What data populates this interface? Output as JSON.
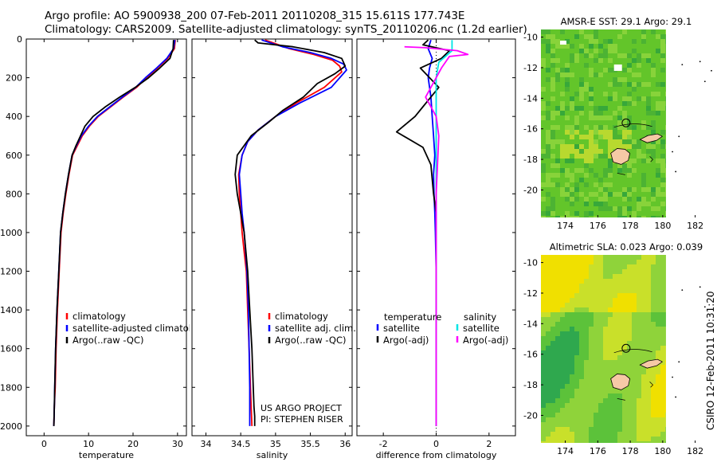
{
  "header": {
    "line1": "Argo profile: AO 5900938_200 07-Feb-2011 20110208_315 15.611S 177.743E",
    "line2": "Climatology: CARS2009. Satellite-adjusted climatology: synTS_20110206.nc (1.2d earlier)"
  },
  "colors": {
    "climatology": "#ff0000",
    "satellite": "#0000ff",
    "argo": "#000000",
    "sat_salinity": "#00e5e5",
    "argo_salinity": "#ff00ff",
    "land": "#f6c9a6"
  },
  "chart_data": [
    {
      "type": "line",
      "id": "temperature",
      "xlabel": "temperature",
      "xlim": [
        -4,
        32
      ],
      "ylim": [
        2050,
        0
      ],
      "xticks": [
        0,
        10,
        20,
        30
      ],
      "yticks": [
        0,
        200,
        400,
        600,
        800,
        1000,
        1200,
        1400,
        1600,
        1800,
        2000
      ],
      "legend": [
        "climatology",
        "satellite-adjusted climatology",
        "Argo(..raw -QC)"
      ],
      "series": [
        {
          "name": "climatology",
          "color": "#ff0000",
          "x": [
            29.5,
            29.3,
            27.8,
            25.5,
            23.0,
            20.8,
            17.8,
            15.0,
            12.2,
            10.2,
            8.6,
            7.5,
            6.4,
            5.6,
            4.9,
            4.3,
            3.8,
            3.4,
            3.0,
            2.7,
            2.5,
            2.3,
            2.2
          ],
          "y": [
            5,
            50,
            100,
            150,
            200,
            250,
            300,
            350,
            400,
            450,
            500,
            550,
            600,
            700,
            800,
            900,
            1000,
            1200,
            1400,
            1600,
            1800,
            1900,
            2000
          ]
        },
        {
          "name": "satellite-adjusted climatology",
          "color": "#0000ff",
          "x": [
            29.4,
            29.1,
            27.6,
            25.3,
            22.8,
            20.6,
            17.6,
            14.8,
            12.0,
            10.0,
            8.4,
            7.3,
            6.3,
            5.5,
            4.8,
            4.2,
            3.7,
            3.3,
            2.9,
            2.6,
            2.4,
            2.3,
            2.2
          ],
          "y": [
            5,
            50,
            100,
            150,
            200,
            250,
            300,
            350,
            400,
            450,
            500,
            550,
            600,
            700,
            800,
            900,
            1000,
            1200,
            1400,
            1600,
            1800,
            1900,
            2000
          ]
        },
        {
          "name": "Argo(..raw -QC)",
          "color": "#000000",
          "x": [
            29.1,
            29.0,
            28.3,
            26.0,
            23.5,
            20.5,
            17.0,
            13.8,
            11.0,
            9.2,
            8.2,
            7.2,
            6.3,
            5.5,
            4.8,
            4.2,
            3.7,
            3.3,
            2.9,
            2.6,
            2.4,
            2.3,
            2.2
          ],
          "y": [
            5,
            50,
            100,
            150,
            200,
            250,
            300,
            350,
            400,
            450,
            500,
            550,
            600,
            700,
            800,
            900,
            1000,
            1200,
            1400,
            1600,
            1800,
            1900,
            2000
          ]
        }
      ]
    },
    {
      "type": "line",
      "id": "salinity",
      "xlabel": "salinity",
      "xlim": [
        33.8,
        36.1
      ],
      "ylim": [
        2050,
        0
      ],
      "xticks": [
        34,
        34.5,
        35,
        35.5,
        36
      ],
      "legend": [
        "climatology",
        "satellite adj. clim.",
        "Argo(..raw -QC)"
      ],
      "annotation": [
        "US ARGO PROJECT",
        "PI: STEPHEN RISER"
      ],
      "series": [
        {
          "name": "climatology",
          "color": "#ff0000",
          "x": [
            34.85,
            35.2,
            35.55,
            35.82,
            35.92,
            35.95,
            35.7,
            35.3,
            35.0,
            34.75,
            34.6,
            34.52,
            34.47,
            34.48,
            34.5,
            34.52,
            34.55,
            34.58,
            34.6,
            34.62,
            34.64,
            34.65,
            34.66
          ],
          "y": [
            5,
            50,
            80,
            110,
            140,
            170,
            250,
            330,
            400,
            470,
            530,
            600,
            700,
            800,
            900,
            1000,
            1100,
            1200,
            1400,
            1600,
            1800,
            1900,
            2000
          ]
        },
        {
          "name": "satellite adj. clim.",
          "color": "#0000ff",
          "x": [
            34.8,
            35.1,
            35.5,
            35.8,
            35.98,
            36.02,
            35.8,
            35.35,
            35.0,
            34.75,
            34.6,
            34.52,
            34.48,
            34.5,
            34.52,
            34.55,
            34.57,
            34.59,
            34.61,
            34.62,
            34.63,
            34.63,
            34.63
          ],
          "y": [
            5,
            40,
            70,
            100,
            130,
            160,
            250,
            330,
            400,
            470,
            530,
            600,
            700,
            800,
            900,
            1000,
            1100,
            1200,
            1400,
            1600,
            1800,
            1900,
            2000
          ]
        },
        {
          "name": "Argo(..raw -QC)",
          "color": "#000000",
          "x": [
            34.7,
            34.75,
            35.25,
            35.7,
            35.95,
            36.0,
            35.85,
            35.6,
            35.4,
            35.1,
            34.9,
            34.65,
            34.45,
            34.42,
            34.45,
            34.5,
            34.55,
            34.6,
            34.63,
            34.66,
            34.68,
            34.69,
            34.7,
            34.7
          ],
          "y": [
            5,
            20,
            40,
            70,
            100,
            140,
            180,
            230,
            300,
            370,
            430,
            500,
            600,
            700,
            800,
            900,
            1000,
            1200,
            1400,
            1600,
            1800,
            1900,
            1950,
            2000
          ]
        }
      ]
    },
    {
      "type": "line",
      "id": "difference",
      "xlabel": "difference from climatology",
      "xlim": [
        -3,
        3
      ],
      "ylim": [
        2050,
        0
      ],
      "xticks": [
        -2,
        0,
        2
      ],
      "legend": {
        "temperature_header": "temperature",
        "salinity_header": "salinity",
        "entries": [
          "satellite",
          "Argo(-adj)",
          "satellite",
          "Argo(-adj)"
        ]
      },
      "series": [
        {
          "name": "temperature satellite",
          "color": "#0000ff",
          "x": [
            -0.2,
            -0.3,
            -0.15,
            -0.25,
            -0.3,
            -0.2,
            -0.15,
            -0.1,
            -0.05,
            -0.1,
            -0.08,
            -0.05,
            -0.03,
            0.0,
            0.0,
            0.0,
            0.0
          ],
          "y": [
            5,
            50,
            100,
            150,
            200,
            300,
            400,
            500,
            600,
            700,
            800,
            900,
            1000,
            1200,
            1600,
            1800,
            2000
          ]
        },
        {
          "name": "temperature Argo(-adj)",
          "color": "#000000",
          "x": [
            -0.3,
            -0.5,
            0.5,
            0.2,
            -0.6,
            0.1,
            -0.5,
            -0.8,
            -1.5,
            -0.5,
            -0.2,
            -0.1,
            0.0,
            0.0,
            0.0,
            0.0,
            0.0
          ],
          "y": [
            5,
            30,
            60,
            100,
            150,
            250,
            350,
            400,
            480,
            560,
            650,
            800,
            900,
            1000,
            1200,
            1600,
            2000
          ]
        },
        {
          "name": "salinity satellite",
          "color": "#00e5e5",
          "x": [
            0.6,
            0.6,
            0.1,
            0.0,
            0.0,
            0.0,
            0.0,
            0.0,
            0.0,
            0.0
          ],
          "y": [
            5,
            60,
            120,
            200,
            400,
            800,
            1200,
            1600,
            1900,
            2000
          ]
        },
        {
          "name": "salinity Argo(-adj)",
          "color": "#ff00ff",
          "x": [
            -1.2,
            -0.4,
            0.8,
            1.2,
            0.5,
            0.2,
            -0.2,
            -0.4,
            0.0,
            0.1,
            0.0,
            0.0,
            0.0,
            0.0
          ],
          "y": [
            40,
            45,
            60,
            80,
            90,
            150,
            250,
            300,
            400,
            500,
            800,
            1200,
            1600,
            2000
          ]
        }
      ]
    },
    {
      "type": "heatmap",
      "id": "sst-map",
      "title": "AMSR-E SST: 29.1 Argo: 29.1",
      "xlim": [
        172.5,
        183
      ],
      "ylim": [
        -21.8,
        -9.5
      ],
      "xticks": [
        174,
        176,
        178,
        180,
        182
      ],
      "yticks": [
        -10,
        -12,
        -14,
        -16,
        -18,
        -20
      ],
      "marker": {
        "lon": 177.743,
        "lat": -15.611
      }
    },
    {
      "type": "heatmap",
      "id": "sla-map",
      "title": "Altimetric SLA: 0.023 Argo: 0.039",
      "xlim": [
        172.5,
        183
      ],
      "ylim": [
        -21.8,
        -9.5
      ],
      "xticks": [
        174,
        176,
        178,
        180,
        182
      ],
      "yticks": [
        -10,
        -12,
        -14,
        -16,
        -18,
        -20
      ],
      "marker": {
        "lon": 177.743,
        "lat": -15.611
      }
    }
  ],
  "footer": {
    "credit": "CSIRO 12-Feb-2011 10:31:20"
  }
}
